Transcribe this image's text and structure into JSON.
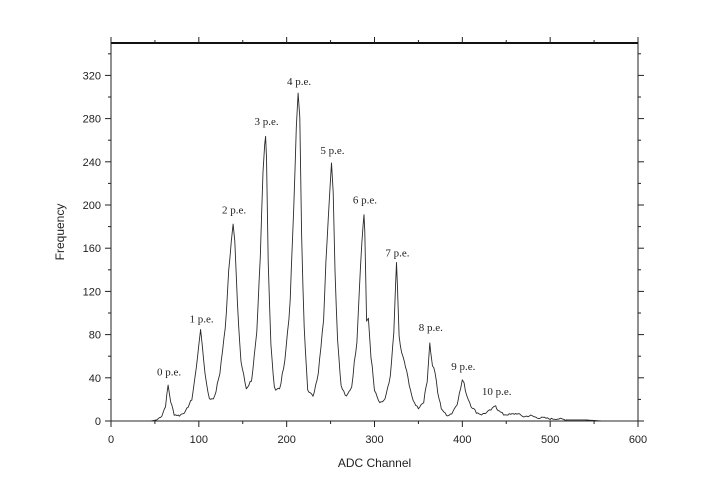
{
  "chart_data": {
    "type": "line",
    "title": "",
    "xlabel": "ADC Channel",
    "ylabel": "Frequency",
    "xlim": [
      0,
      600
    ],
    "ylim": [
      0,
      350
    ],
    "xticks": [
      0,
      100,
      200,
      300,
      400,
      500,
      600
    ],
    "yticks": [
      0,
      40,
      80,
      120,
      160,
      200,
      240,
      280,
      320
    ],
    "grid": false,
    "legend": "none",
    "peaks": [
      {
        "label": "0 p.e.",
        "x": 65,
        "y": 33
      },
      {
        "label": "1 p.e.",
        "x": 102,
        "y": 82
      },
      {
        "label": "2 p.e.",
        "x": 139,
        "y": 183
      },
      {
        "label": "3 p.e.",
        "x": 176,
        "y": 265
      },
      {
        "label": "4 p.e.",
        "x": 213,
        "y": 302
      },
      {
        "label": "5 p.e.",
        "x": 251,
        "y": 238
      },
      {
        "label": "6 p.e.",
        "x": 288,
        "y": 192
      },
      {
        "label": "7 p.e.",
        "x": 325,
        "y": 143
      },
      {
        "label": "8 p.e.",
        "x": 363,
        "y": 74
      },
      {
        "label": "9 p.e.",
        "x": 400,
        "y": 38
      },
      {
        "label": "10 p.e.",
        "x": 438,
        "y": 15
      }
    ],
    "series": [
      {
        "x": [
          0,
          45,
          52,
          58,
          62,
          65,
          68,
          72,
          78,
          85,
          92,
          97,
          100,
          102,
          104,
          107,
          112,
          118,
          124,
          130,
          134,
          137,
          139,
          141,
          144,
          148,
          154,
          160,
          166,
          170,
          173,
          175,
          176,
          177,
          179,
          182,
          186,
          192,
          198,
          204,
          208,
          211,
          213,
          215,
          217,
          220,
          224,
          230,
          236,
          242,
          246,
          249,
          251,
          253,
          255,
          258,
          262,
          268,
          274,
          280,
          284,
          287,
          288,
          289,
          291,
          293,
          296,
          300,
          306,
          312,
          318,
          322,
          324,
          325,
          326,
          328,
          331,
          334,
          338,
          344,
          350,
          356,
          360,
          362,
          363,
          364,
          366,
          369,
          372,
          376,
          382,
          388,
          394,
          398,
          400,
          402,
          405,
          410,
          416,
          422,
          428,
          434,
          437,
          438,
          439,
          442,
          447,
          455,
          462,
          470,
          478,
          485,
          492,
          500,
          510,
          520,
          540,
          560,
          580,
          600
        ],
        "y": [
          0,
          0,
          1,
          5,
          14,
          33,
          18,
          6,
          5,
          9,
          20,
          48,
          72,
          82,
          70,
          44,
          20,
          22,
          45,
          85,
          140,
          170,
          183,
          165,
          105,
          55,
          30,
          38,
          80,
          150,
          230,
          260,
          265,
          245,
          150,
          70,
          30,
          30,
          55,
          110,
          200,
          270,
          302,
          280,
          170,
          85,
          30,
          22,
          45,
          95,
          170,
          215,
          238,
          215,
          140,
          75,
          32,
          22,
          32,
          75,
          145,
          182,
          192,
          175,
          90,
          95,
          60,
          28,
          16,
          20,
          40,
          82,
          130,
          143,
          128,
          78,
          62,
          55,
          40,
          18,
          12,
          18,
          38,
          62,
          74,
          63,
          52,
          45,
          26,
          12,
          5,
          7,
          16,
          30,
          38,
          34,
          24,
          14,
          8,
          6,
          8,
          11,
          14,
          15,
          12,
          9,
          6,
          6,
          7,
          4,
          5,
          3,
          3,
          2,
          2,
          1,
          1,
          0,
          0,
          0
        ]
      }
    ]
  }
}
